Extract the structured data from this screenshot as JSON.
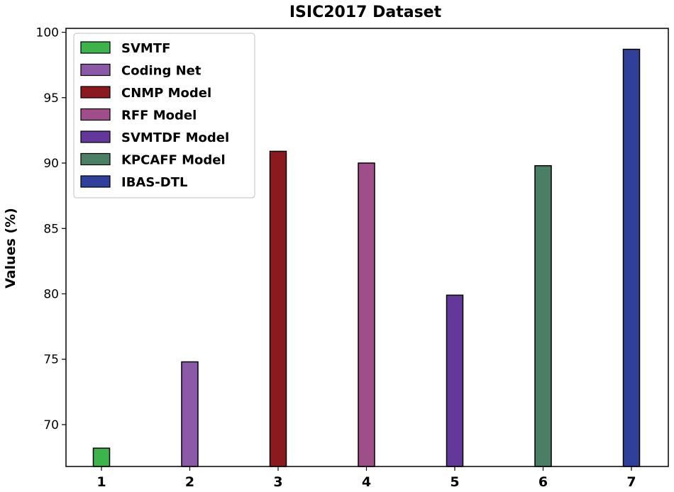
{
  "chart_data": {
    "type": "bar",
    "title": "ISIC2017 Dataset",
    "xlabel": "",
    "ylabel": "Values (%)",
    "ylim": [
      66.8,
      100.3
    ],
    "yticks": [
      70,
      75,
      80,
      85,
      90,
      95,
      100
    ],
    "categories": [
      "1",
      "2",
      "3",
      "4",
      "5",
      "6",
      "7"
    ],
    "series": [
      {
        "name": "SVMTF",
        "category": "1",
        "value": 68.2,
        "color": "#3cb44b"
      },
      {
        "name": "Coding Net",
        "category": "2",
        "value": 74.8,
        "color": "#8a5aa8"
      },
      {
        "name": "CNMP Model",
        "category": "3",
        "value": 90.9,
        "color": "#8b1a1f"
      },
      {
        "name": "RFF Model",
        "category": "4",
        "value": 90.0,
        "color": "#a04e8a"
      },
      {
        "name": "SVMTDF Model",
        "category": "5",
        "value": 79.9,
        "color": "#63389a"
      },
      {
        "name": "KPCAFF Model",
        "category": "6",
        "value": 89.8,
        "color": "#4a7f65"
      },
      {
        "name": "IBAS-DTL",
        "category": "7",
        "value": 98.7,
        "color": "#2f3f9a"
      }
    ],
    "legend": "top-left",
    "grid": false
  }
}
